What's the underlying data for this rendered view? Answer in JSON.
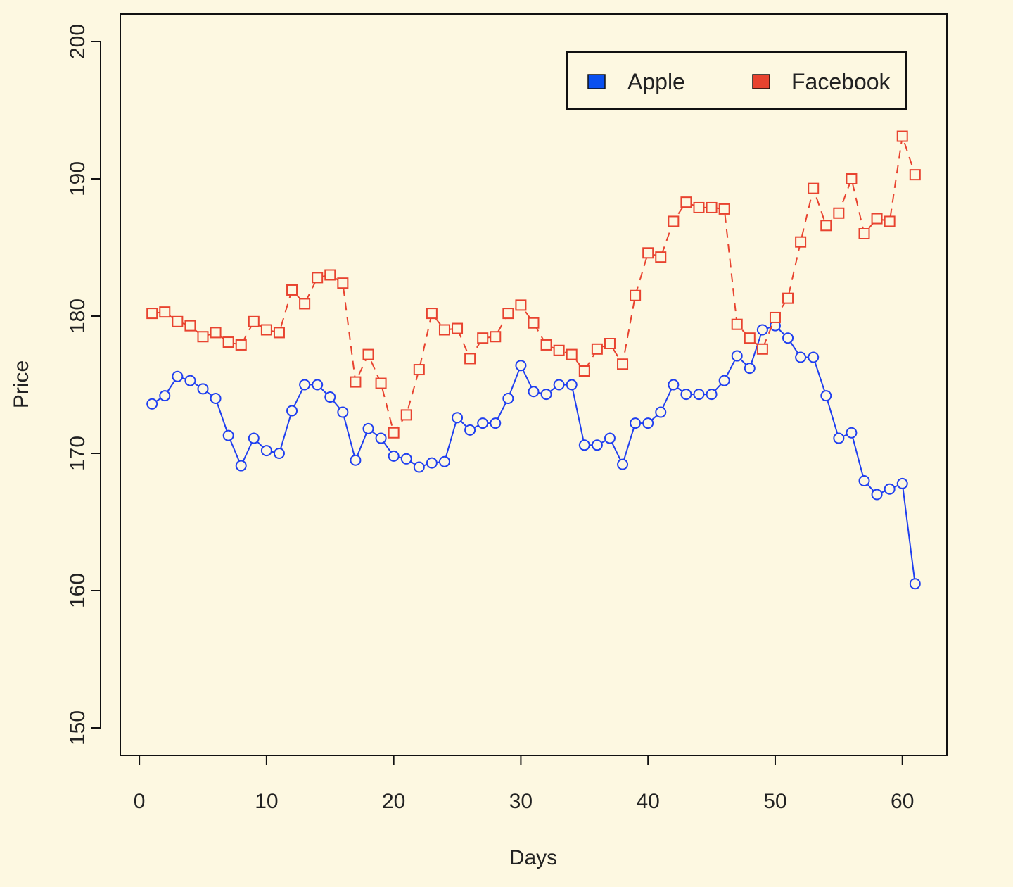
{
  "chart_data": {
    "type": "line",
    "xlabel": "Days",
    "ylabel": "Price",
    "xlim": [
      -1.5,
      63.5
    ],
    "ylim": [
      148,
      202
    ],
    "x_ticks": [
      0,
      10,
      20,
      30,
      40,
      50,
      60
    ],
    "y_ticks": [
      150,
      160,
      170,
      180,
      190,
      200
    ],
    "legend_position": "top-right",
    "x": [
      1,
      2,
      3,
      4,
      5,
      6,
      7,
      8,
      9,
      10,
      11,
      12,
      13,
      14,
      15,
      16,
      17,
      18,
      19,
      20,
      21,
      22,
      23,
      24,
      25,
      26,
      27,
      28,
      29,
      30,
      31,
      32,
      33,
      34,
      35,
      36,
      37,
      38,
      39,
      40,
      41,
      42,
      43,
      44,
      45,
      46,
      47,
      48,
      49,
      50,
      51,
      52,
      53,
      54,
      55,
      56,
      57,
      58,
      59,
      60,
      61
    ],
    "series": [
      {
        "name": "Apple",
        "color": "#1f3ff0",
        "legend_color": "#0a50f0",
        "line_style": "solid",
        "marker": "circle",
        "values": [
          173.6,
          174.2,
          175.6,
          175.3,
          174.7,
          174.0,
          171.3,
          169.1,
          171.1,
          170.2,
          170.0,
          173.1,
          175.0,
          175.0,
          174.1,
          173.0,
          169.5,
          171.8,
          171.1,
          169.8,
          169.6,
          169.0,
          169.3,
          169.4,
          172.6,
          171.7,
          172.2,
          172.2,
          174.0,
          176.4,
          174.5,
          174.3,
          175.0,
          175.0,
          170.6,
          170.6,
          171.1,
          169.2,
          172.2,
          172.2,
          173.0,
          175.0,
          174.3,
          174.3,
          174.3,
          175.3,
          177.1,
          176.2,
          179.0,
          179.3,
          178.4,
          177.0,
          177.0,
          174.2,
          171.1,
          171.5,
          168.0,
          167.0,
          167.4,
          167.8,
          160.5
        ]
      },
      {
        "name": "Facebook",
        "color": "#e8432f",
        "legend_color": "#e8432f",
        "line_style": "dashed",
        "marker": "square",
        "values": [
          180.2,
          180.3,
          179.6,
          179.3,
          178.5,
          178.8,
          178.1,
          177.9,
          179.6,
          179.0,
          178.8,
          181.9,
          180.9,
          182.8,
          183.0,
          182.4,
          175.2,
          177.2,
          175.1,
          171.5,
          172.8,
          176.1,
          180.2,
          179.0,
          179.1,
          176.9,
          178.4,
          178.5,
          180.2,
          180.8,
          179.5,
          177.9,
          177.5,
          177.2,
          176.0,
          177.6,
          178.0,
          176.5,
          181.5,
          184.6,
          184.3,
          186.9,
          188.3,
          187.9,
          187.9,
          187.8,
          179.4,
          178.4,
          177.6,
          179.9,
          181.3,
          185.4,
          189.3,
          186.6,
          187.5,
          190.0,
          186.0,
          187.1,
          186.9,
          193.1,
          190.3
        ]
      }
    ]
  }
}
